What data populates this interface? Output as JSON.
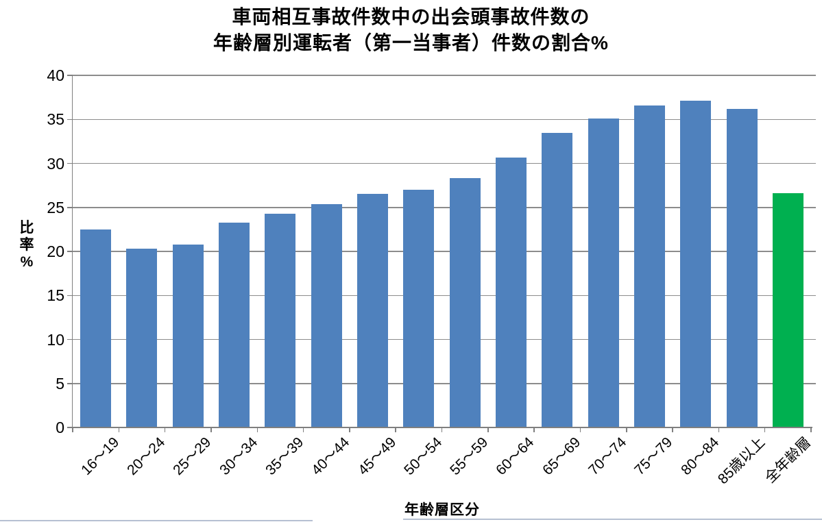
{
  "chart_data": {
    "type": "bar",
    "title_lines": [
      "車両相互事故件数中の出会頭事故件数の",
      "年齢層別運転者（第一当事者）件数の割合%"
    ],
    "ylabel": "比率%",
    "xlabel": "年齢層区分",
    "categories": [
      "16～19",
      "20～24",
      "25～29",
      "30～34",
      "35～39",
      "40～44",
      "45～49",
      "50～54",
      "55～59",
      "60～64",
      "65～69",
      "70～74",
      "75～79",
      "80～84",
      "85歳以上",
      "全年齢層"
    ],
    "values": [
      22.5,
      20.3,
      20.8,
      23.3,
      24.3,
      25.4,
      26.5,
      27.0,
      28.3,
      30.7,
      33.5,
      35.1,
      36.6,
      37.1,
      36.2,
      26.6
    ],
    "bar_colors": [
      "#4F81BD",
      "#4F81BD",
      "#4F81BD",
      "#4F81BD",
      "#4F81BD",
      "#4F81BD",
      "#4F81BD",
      "#4F81BD",
      "#4F81BD",
      "#4F81BD",
      "#4F81BD",
      "#4F81BD",
      "#4F81BD",
      "#4F81BD",
      "#4F81BD",
      "#00B050"
    ],
    "ylim": [
      0,
      40
    ],
    "yticks": [
      0,
      5,
      10,
      15,
      20,
      25,
      30,
      35,
      40
    ],
    "grid": true,
    "legend": "none",
    "colors": {
      "bar_default": "#4F81BD",
      "bar_highlight": "#00B050",
      "gridline": "#8C8C8C",
      "axis": "#7F7F7F",
      "text": "#000000",
      "frame_border": "#B6C0D2"
    }
  }
}
